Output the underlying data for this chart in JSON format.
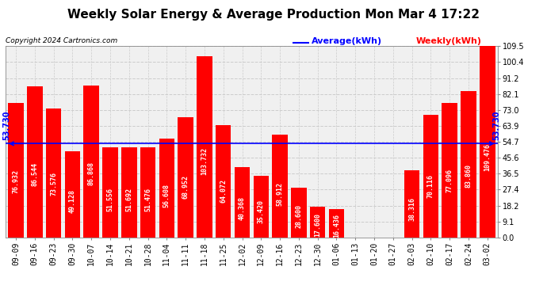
{
  "title": "Weekly Solar Energy & Average Production Mon Mar 4 17:22",
  "copyright": "Copyright 2024 Cartronics.com",
  "legend_average": "Average(kWh)",
  "legend_weekly": "Weekly(kWh)",
  "average_value": 53.73,
  "categories": [
    "09-09",
    "09-16",
    "09-23",
    "09-30",
    "10-07",
    "10-14",
    "10-21",
    "10-28",
    "11-04",
    "11-11",
    "11-18",
    "11-25",
    "12-02",
    "12-09",
    "12-16",
    "12-23",
    "12-30",
    "01-06",
    "01-13",
    "01-20",
    "01-27",
    "02-03",
    "02-10",
    "02-17",
    "02-24",
    "03-02"
  ],
  "values": [
    76.932,
    86.544,
    73.576,
    49.128,
    86.868,
    51.556,
    51.692,
    51.476,
    56.608,
    68.952,
    103.732,
    64.072,
    40.368,
    35.42,
    58.912,
    28.6,
    17.6,
    16.436,
    0.0,
    0.0,
    0.148,
    38.316,
    70.116,
    77.096,
    83.86,
    109.476
  ],
  "bar_color": "#ff0000",
  "average_line_color": "#0000ff",
  "label_color": "#ffffff",
  "ytick_labels": [
    "0.0",
    "9.1",
    "18.2",
    "27.4",
    "36.5",
    "45.6",
    "54.7",
    "63.9",
    "73.0",
    "82.1",
    "91.2",
    "100.4",
    "109.5"
  ],
  "ytick_values": [
    0.0,
    9.1,
    18.2,
    27.4,
    36.5,
    45.6,
    54.7,
    63.9,
    73.0,
    82.1,
    91.2,
    100.4,
    109.5
  ],
  "ylim": [
    0.0,
    109.5
  ],
  "background_color": "#ffffff",
  "plot_bg_color": "#f0f0f0",
  "grid_color": "#cccccc",
  "title_fontsize": 11,
  "tick_fontsize": 7,
  "label_fontsize": 6,
  "copyright_fontsize": 6.5,
  "legend_fontsize": 8,
  "average_label_text": "53.730",
  "average_label_fontsize": 7
}
